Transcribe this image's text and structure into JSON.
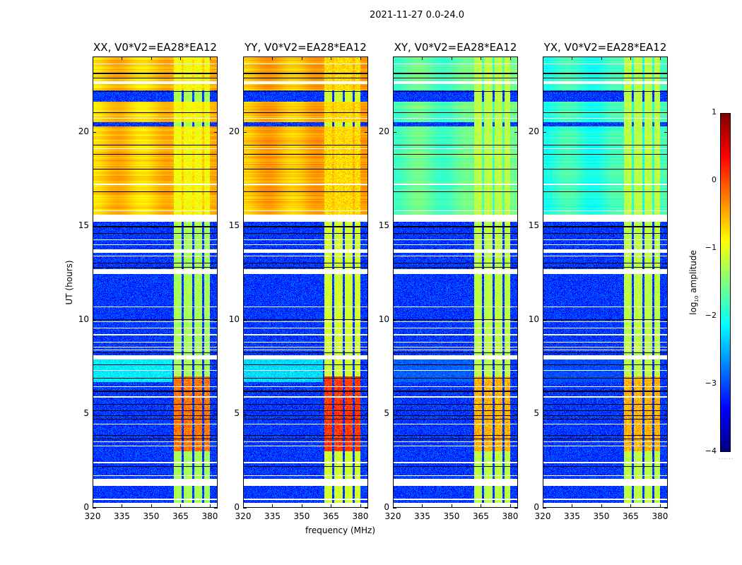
{
  "chart_data": {
    "type": "heatmap",
    "title": "2021-11-27 0.0-24.0",
    "xlabel": "frequency (MHz)",
    "ylabel": "UT (hours)",
    "xlim": [
      320,
      384
    ],
    "ylim": [
      0,
      24
    ],
    "xticks": [
      "320",
      "335",
      "350",
      "365",
      "380"
    ],
    "xtick_values": [
      320,
      335,
      350,
      365,
      380
    ],
    "yticks": [
      "0",
      "5",
      "10",
      "15",
      "20"
    ],
    "ytick_values": [
      0,
      5,
      10,
      15,
      20
    ],
    "colormap": "jet",
    "colorbar": {
      "label": "log10 amplitude",
      "label_main": "log",
      "label_sub": "10",
      "label_rest": " amplitude",
      "range": [
        -4,
        1
      ],
      "ticks": [
        "1",
        "0",
        "−1",
        "−2",
        "−3",
        "−4"
      ],
      "tick_values": [
        1,
        0,
        -1,
        -2,
        -3,
        -4
      ],
      "dots": "......"
    },
    "rfi_band_mhz": [
      361.5,
      380
    ],
    "rfi_band_gaps_mhz": [
      366,
      371.5,
      376.5
    ],
    "flagged_ut_intervals": [
      [
        0,
        0.28
      ],
      [
        1.15,
        1.55
      ],
      [
        7.9,
        8.1
      ],
      [
        12.45,
        12.7
      ],
      [
        13.55,
        13.75
      ],
      [
        15.2,
        15.6
      ],
      [
        22.55,
        22.7
      ]
    ],
    "flagged_ut_lines": [
      0.45,
      1.7,
      2.4,
      3.3,
      3.5,
      4.45,
      5.9,
      6.45,
      7.3,
      8.4,
      8.55,
      8.8,
      9.2,
      9.55,
      9.9,
      10.7,
      13.4,
      14.0,
      14.25,
      15.8,
      17.2,
      19.1,
      20.7,
      23.6
    ],
    "black_ut_lines": [
      2.2,
      3.65,
      3.85,
      4.7,
      4.9,
      5.15,
      5.5,
      6.2,
      6.9,
      7.6,
      8.25,
      10.0,
      12.8,
      13.0,
      14.6,
      14.95,
      16.8,
      18.0,
      18.8,
      19.3,
      21.0,
      22.15,
      22.85,
      23.1
    ],
    "low_ut_intervals": [
      [
        20.3,
        20.5
      ],
      [
        21.6,
        22.2
      ]
    ],
    "panels": [
      {
        "title": "XX, V0*V2=EA28*EA12",
        "levels": {
          "quiet_bg": -3.1,
          "quiet_band": -1.3,
          "active_band": -0.2,
          "cyan_bg": -2.2,
          "high_bg": -0.6,
          "high_band": -0.9
        }
      },
      {
        "title": "YY, V0*V2=EA28*EA12",
        "levels": {
          "quiet_bg": -3.1,
          "quiet_band": -1.1,
          "active_band": 0.1,
          "cyan_bg": -2.3,
          "high_bg": -0.5,
          "high_band": -0.7
        }
      },
      {
        "title": "XY, V0*V2=EA28*EA12",
        "levels": {
          "quiet_bg": -3.1,
          "quiet_band": -1.2,
          "active_band": -0.5,
          "cyan_bg": -2.9,
          "high_bg": -1.7,
          "high_band": -1.2
        }
      },
      {
        "title": "YX, V0*V2=EA28*EA12",
        "levels": {
          "quiet_bg": -3.1,
          "quiet_band": -1.2,
          "active_band": -0.5,
          "cyan_bg": -3.0,
          "high_bg": -1.9,
          "high_band": -1.2
        }
      }
    ],
    "ut_regions": {
      "active": [
        3,
        7
      ],
      "cyan": [
        6.7,
        7.9
      ],
      "high": [
        15.6,
        24
      ]
    }
  }
}
